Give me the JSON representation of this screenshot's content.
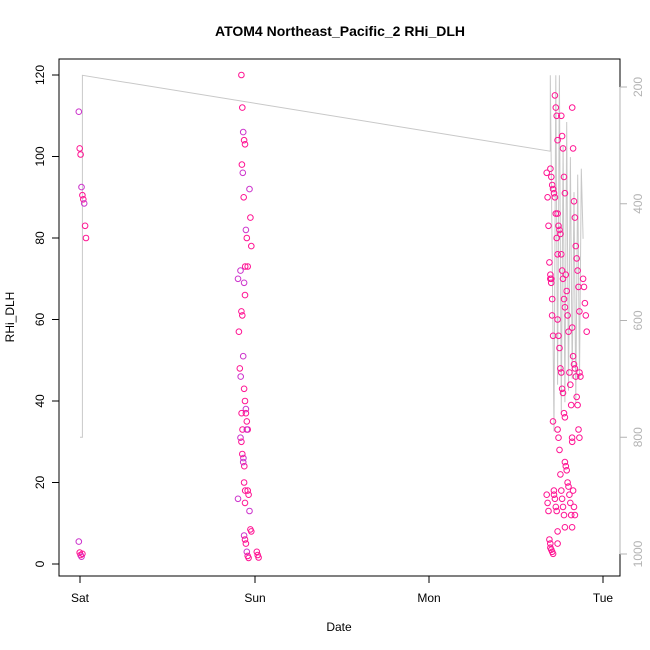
{
  "chart_data": {
    "type": "scatter",
    "title": "ATOM4 Northeast_Pacific_2 RHi_DLH",
    "xlabel": "Date",
    "ylabel": "RHi_DLH",
    "x_ticks": [
      "Sat",
      "Sun",
      "Mon",
      "Tue"
    ],
    "y_ticks": [
      0,
      20,
      40,
      60,
      80,
      100,
      120
    ],
    "ylim": [
      -3,
      124
    ],
    "y2_ticks": [
      200,
      400,
      600,
      800,
      1000
    ],
    "y2lim": [
      1025,
      175
    ],
    "grid": false,
    "legend": "none",
    "colors": {
      "points_main": "#ff1493",
      "points_alt": "#cc33cc",
      "pressure_line": "#c8c8c8",
      "axis": "#000000",
      "right_axis": "#b3b3b3"
    },
    "series": [
      {
        "kind": "points",
        "points": [
          {
            "x": "Sat 00:20",
            "y": 111
          },
          {
            "x": "Sat 00:20",
            "y": 102
          },
          {
            "x": "Sat 00:20",
            "y": 100.5
          },
          {
            "x": "Sat 00:20",
            "y": 92.5
          },
          {
            "x": "Sat 00:20",
            "y": 90.5
          },
          {
            "x": "Sat 00:20",
            "y": 89.5
          },
          {
            "x": "Sat 00:20",
            "y": 88.5
          },
          {
            "x": "Sat 00:20",
            "y": 83
          },
          {
            "x": "Sat 00:20",
            "y": 80
          },
          {
            "x": "Sat 00:20",
            "y": 5.5
          },
          {
            "x": "Sat 00:20",
            "y": 2.8
          },
          {
            "x": "Sat 00:20",
            "y": 2.2
          },
          {
            "x": "Sat 00:20",
            "y": 1.8
          },
          {
            "x": "Sat 00:20",
            "y": 2.5
          },
          {
            "x": "Sat 22:05",
            "y": 98
          },
          {
            "x": "Sat 22:05",
            "y": 96
          },
          {
            "x": "Sat 22:05",
            "y": 90
          },
          {
            "x": "Sat 22:10",
            "y": 73
          },
          {
            "x": "Sat 22:10",
            "y": 70
          },
          {
            "x": "Sat 22:10",
            "y": 57
          },
          {
            "x": "Sat 22:10",
            "y": 48
          },
          {
            "x": "Sat 22:10",
            "y": 46
          },
          {
            "x": "Sat 22:10",
            "y": 37
          },
          {
            "x": "Sat 22:10",
            "y": 33
          },
          {
            "x": "Sat 22:10",
            "y": 26
          },
          {
            "x": "Sat 22:10",
            "y": 24
          },
          {
            "x": "Sat 22:10",
            "y": 18
          },
          {
            "x": "Sat 22:10",
            "y": 16
          },
          {
            "x": "Sat 22:30",
            "y": 120
          },
          {
            "x": "Sat 22:30",
            "y": 112
          },
          {
            "x": "Sat 22:30",
            "y": 106
          },
          {
            "x": "Sat 22:30",
            "y": 104
          },
          {
            "x": "Sat 22:30",
            "y": 103
          },
          {
            "x": "Sat 22:30",
            "y": 82
          },
          {
            "x": "Sat 22:30",
            "y": 80
          },
          {
            "x": "Sat 22:30",
            "y": 73
          },
          {
            "x": "Sat 22:30",
            "y": 72
          },
          {
            "x": "Sat 22:30",
            "y": 62
          },
          {
            "x": "Sat 22:30",
            "y": 61
          },
          {
            "x": "Sat 22:30",
            "y": 51
          },
          {
            "x": "Sat 22:30",
            "y": 43
          },
          {
            "x": "Sat 22:30",
            "y": 40
          },
          {
            "x": "Sat 22:30",
            "y": 38
          },
          {
            "x": "Sat 22:30",
            "y": 35
          },
          {
            "x": "Sat 22:30",
            "y": 33
          },
          {
            "x": "Sat 22:30",
            "y": 31
          },
          {
            "x": "Sat 22:30",
            "y": 30
          },
          {
            "x": "Sat 22:30",
            "y": 27
          },
          {
            "x": "Sat 22:30",
            "y": 25
          },
          {
            "x": "Sat 22:30",
            "y": 20
          },
          {
            "x": "Sat 22:30",
            "y": 15
          },
          {
            "x": "Sat 23:00",
            "y": 92
          },
          {
            "x": "Sat 23:00",
            "y": 85
          },
          {
            "x": "Sat 23:00",
            "y": 78
          },
          {
            "x": "Sat 23:00",
            "y": 69
          },
          {
            "x": "Sat 23:00",
            "y": 66
          },
          {
            "x": "Sat 23:00",
            "y": 37
          },
          {
            "x": "Sat 23:00",
            "y": 33
          },
          {
            "x": "Sat 23:00",
            "y": 18
          },
          {
            "x": "Sat 23:00",
            "y": 17
          },
          {
            "x": "Sat 23:00",
            "y": 13
          },
          {
            "x": "Sat 23:00",
            "y": 8.5
          },
          {
            "x": "Sat 23:00",
            "y": 8
          },
          {
            "x": "Sat 23:00",
            "y": 7
          },
          {
            "x": "Sat 23:00",
            "y": 6
          },
          {
            "x": "Sat 23:00",
            "y": 5
          },
          {
            "x": "Sat 23:00",
            "y": 3
          },
          {
            "x": "Sat 23:00",
            "y": 2
          },
          {
            "x": "Sat 23:00",
            "y": 1.5
          },
          {
            "x": "Sun 00:00",
            "y": 3
          },
          {
            "x": "Sun 00:00",
            "y": 2.2
          },
          {
            "x": "Sun 00:00",
            "y": 1.6
          },
          {
            "x": "Mon 16:30",
            "y": 96
          },
          {
            "x": "Mon 16:30",
            "y": 90
          },
          {
            "x": "Mon 16:30",
            "y": 83
          },
          {
            "x": "Mon 16:30",
            "y": 74
          },
          {
            "x": "Mon 16:30",
            "y": 70
          },
          {
            "x": "Mon 16:30",
            "y": 69
          },
          {
            "x": "Mon 16:30",
            "y": 61
          },
          {
            "x": "Mon 16:30",
            "y": 35
          },
          {
            "x": "Mon 16:30",
            "y": 18
          },
          {
            "x": "Mon 16:30",
            "y": 17
          },
          {
            "x": "Mon 16:30",
            "y": 15
          },
          {
            "x": "Mon 16:30",
            "y": 13
          },
          {
            "x": "Mon 16:30",
            "y": 6
          },
          {
            "x": "Mon 16:30",
            "y": 5
          },
          {
            "x": "Mon 17:00",
            "y": 115
          },
          {
            "x": "Mon 17:00",
            "y": 112
          },
          {
            "x": "Mon 17:00",
            "y": 110
          },
          {
            "x": "Mon 17:00",
            "y": 104
          },
          {
            "x": "Mon 17:00",
            "y": 97
          },
          {
            "x": "Mon 17:00",
            "y": 95
          },
          {
            "x": "Mon 17:00",
            "y": 93
          },
          {
            "x": "Mon 17:00",
            "y": 92
          },
          {
            "x": "Mon 17:00",
            "y": 91
          },
          {
            "x": "Mon 17:00",
            "y": 90
          },
          {
            "x": "Mon 17:00",
            "y": 86
          },
          {
            "x": "Mon 17:00",
            "y": 80
          },
          {
            "x": "Mon 17:00",
            "y": 76
          },
          {
            "x": "Mon 17:00",
            "y": 71
          },
          {
            "x": "Mon 17:00",
            "y": 70
          },
          {
            "x": "Mon 17:00",
            "y": 65
          },
          {
            "x": "Mon 17:00",
            "y": 56
          },
          {
            "x": "Mon 17:00",
            "y": 17
          },
          {
            "x": "Mon 17:00",
            "y": 16
          },
          {
            "x": "Mon 17:00",
            "y": 14
          },
          {
            "x": "Mon 17:00",
            "y": 13
          },
          {
            "x": "Mon 17:00",
            "y": 5
          },
          {
            "x": "Mon 17:00",
            "y": 4
          },
          {
            "x": "Mon 17:00",
            "y": 3.5
          },
          {
            "x": "Mon 17:00",
            "y": 3
          },
          {
            "x": "Mon 17:00",
            "y": 2.5
          },
          {
            "x": "Mon 18:00",
            "y": 110
          },
          {
            "x": "Mon 18:00",
            "y": 105
          },
          {
            "x": "Mon 18:00",
            "y": 102
          },
          {
            "x": "Mon 18:00",
            "y": 95
          },
          {
            "x": "Mon 18:00",
            "y": 91
          },
          {
            "x": "Mon 18:00",
            "y": 86
          },
          {
            "x": "Mon 18:00",
            "y": 83
          },
          {
            "x": "Mon 18:00",
            "y": 82
          },
          {
            "x": "Mon 18:00",
            "y": 81
          },
          {
            "x": "Mon 18:00",
            "y": 76
          },
          {
            "x": "Mon 18:00",
            "y": 72
          },
          {
            "x": "Mon 18:00",
            "y": 70
          },
          {
            "x": "Mon 18:00",
            "y": 65
          },
          {
            "x": "Mon 18:00",
            "y": 63
          },
          {
            "x": "Mon 18:00",
            "y": 60
          },
          {
            "x": "Mon 18:00",
            "y": 56
          },
          {
            "x": "Mon 18:00",
            "y": 53
          },
          {
            "x": "Mon 18:00",
            "y": 48
          },
          {
            "x": "Mon 18:00",
            "y": 47
          },
          {
            "x": "Mon 18:00",
            "y": 43
          },
          {
            "x": "Mon 18:00",
            "y": 42
          },
          {
            "x": "Mon 18:00",
            "y": 37
          },
          {
            "x": "Mon 18:00",
            "y": 36
          },
          {
            "x": "Mon 18:00",
            "y": 33
          },
          {
            "x": "Mon 18:00",
            "y": 31
          },
          {
            "x": "Mon 18:00",
            "y": 28
          },
          {
            "x": "Mon 18:00",
            "y": 22
          },
          {
            "x": "Mon 18:00",
            "y": 18
          },
          {
            "x": "Mon 18:00",
            "y": 16
          },
          {
            "x": "Mon 18:00",
            "y": 14
          },
          {
            "x": "Mon 18:00",
            "y": 12
          },
          {
            "x": "Mon 18:00",
            "y": 9
          },
          {
            "x": "Mon 18:00",
            "y": 8
          },
          {
            "x": "Mon 19:00",
            "y": 71
          },
          {
            "x": "Mon 19:00",
            "y": 67
          },
          {
            "x": "Mon 19:00",
            "y": 61
          },
          {
            "x": "Mon 19:00",
            "y": 57
          },
          {
            "x": "Mon 19:00",
            "y": 47
          },
          {
            "x": "Mon 19:00",
            "y": 44
          },
          {
            "x": "Mon 19:00",
            "y": 39
          },
          {
            "x": "Mon 19:00",
            "y": 31
          },
          {
            "x": "Mon 19:00",
            "y": 25
          },
          {
            "x": "Mon 19:00",
            "y": 24
          },
          {
            "x": "Mon 19:00",
            "y": 23
          },
          {
            "x": "Mon 19:00",
            "y": 20
          },
          {
            "x": "Mon 19:00",
            "y": 19
          },
          {
            "x": "Mon 19:00",
            "y": 17
          },
          {
            "x": "Mon 19:00",
            "y": 15
          },
          {
            "x": "Mon 19:00",
            "y": 12
          },
          {
            "x": "Mon 19:00",
            "y": 9
          },
          {
            "x": "Mon 20:00",
            "y": 112
          },
          {
            "x": "Mon 20:00",
            "y": 102
          },
          {
            "x": "Mon 20:00",
            "y": 89
          },
          {
            "x": "Mon 20:00",
            "y": 85
          },
          {
            "x": "Mon 20:00",
            "y": 78
          },
          {
            "x": "Mon 20:00",
            "y": 75
          },
          {
            "x": "Mon 20:00",
            "y": 72
          },
          {
            "x": "Mon 20:00",
            "y": 68
          },
          {
            "x": "Mon 20:00",
            "y": 62
          },
          {
            "x": "Mon 20:00",
            "y": 58
          },
          {
            "x": "Mon 20:00",
            "y": 51
          },
          {
            "x": "Mon 20:00",
            "y": 49
          },
          {
            "x": "Mon 20:00",
            "y": 48
          },
          {
            "x": "Mon 20:00",
            "y": 46
          },
          {
            "x": "Mon 20:00",
            "y": 41
          },
          {
            "x": "Mon 20:00",
            "y": 39
          },
          {
            "x": "Mon 20:00",
            "y": 33
          },
          {
            "x": "Mon 20:00",
            "y": 31
          },
          {
            "x": "Mon 20:00",
            "y": 30
          },
          {
            "x": "Mon 20:00",
            "y": 18
          },
          {
            "x": "Mon 20:00",
            "y": 14
          },
          {
            "x": "Mon 20:00",
            "y": 12
          },
          {
            "x": "Mon 21:00",
            "y": 70
          },
          {
            "x": "Mon 21:00",
            "y": 68
          },
          {
            "x": "Mon 21:00",
            "y": 64
          },
          {
            "x": "Mon 21:00",
            "y": 61
          },
          {
            "x": "Mon 21:00",
            "y": 57
          },
          {
            "x": "Mon 21:00",
            "y": 47
          },
          {
            "x": "Mon 21:00",
            "y": 46
          }
        ]
      },
      {
        "kind": "pressure-line",
        "axis": "right",
        "path": [
          {
            "x": "Sat 00:00",
            "p": 800
          },
          {
            "x": "Sat 00:20",
            "p": 800
          },
          {
            "x": "Sat 00:20",
            "p": 180
          },
          {
            "x": "Mon 16:30",
            "p": 310
          },
          {
            "x": "Mon 16:30",
            "p": 180
          },
          {
            "x": "Mon 17:00",
            "p": 790
          },
          {
            "x": "Mon 17:15",
            "p": 180
          },
          {
            "x": "Mon 17:30",
            "p": 710
          },
          {
            "x": "Mon 17:45",
            "p": 180
          },
          {
            "x": "Mon 18:00",
            "p": 760
          },
          {
            "x": "Mon 18:15",
            "p": 300
          },
          {
            "x": "Mon 18:30",
            "p": 740
          },
          {
            "x": "Mon 18:45",
            "p": 260
          },
          {
            "x": "Mon 19:00",
            "p": 720
          },
          {
            "x": "Mon 19:15",
            "p": 320
          },
          {
            "x": "Mon 19:30",
            "p": 700
          },
          {
            "x": "Mon 19:45",
            "p": 380
          },
          {
            "x": "Mon 20:00",
            "p": 740
          },
          {
            "x": "Mon 20:15",
            "p": 350
          },
          {
            "x": "Mon 20:30",
            "p": 700
          },
          {
            "x": "Mon 20:45",
            "p": 340
          },
          {
            "x": "Mon 21:00",
            "p": 460
          }
        ]
      }
    ]
  }
}
